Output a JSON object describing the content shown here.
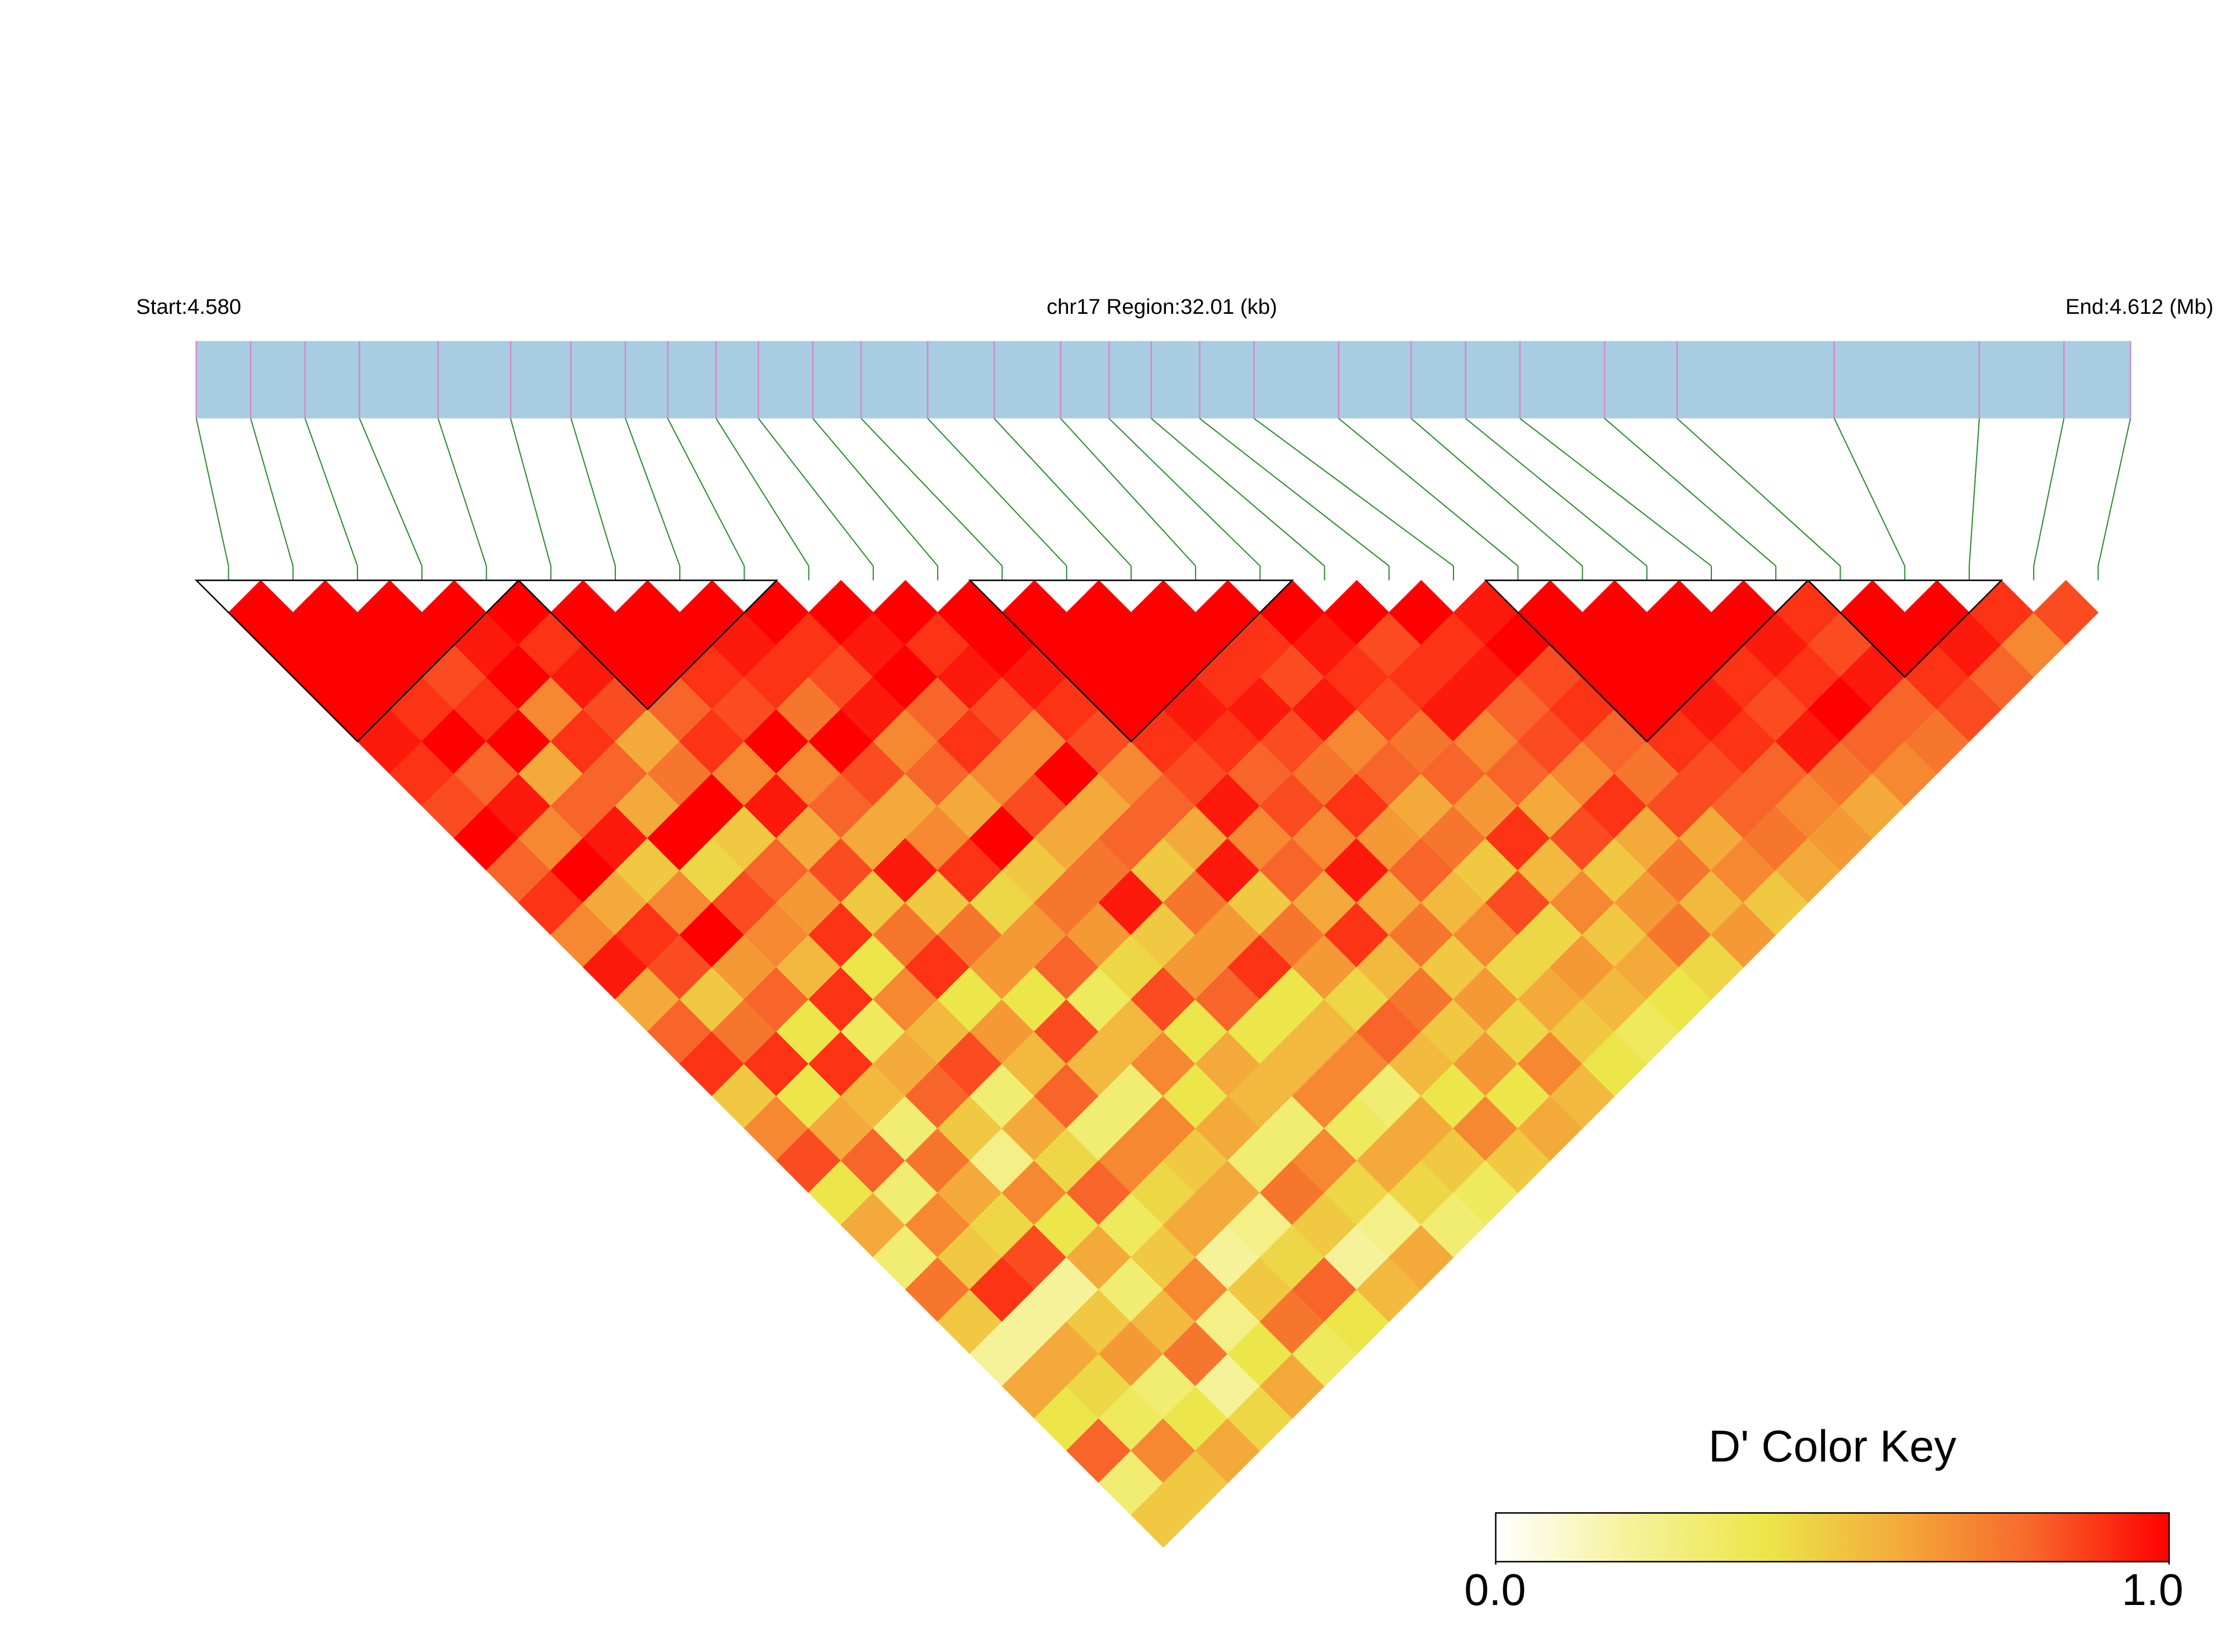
{
  "chart_data": {
    "type": "ld_heatmap",
    "start_label": "Start:4.580",
    "title": "chr17 Region:32.01 (kb)",
    "end_label": "End:4.612 (Mb)",
    "xlim": [
      4.58,
      4.612
    ],
    "positions": [
      4.58,
      4.5809,
      4.5818,
      4.5827,
      4.584,
      4.5852,
      4.5862,
      4.5871,
      4.5878,
      4.5886,
      4.5893,
      4.5902,
      4.591,
      4.5921,
      4.5932,
      4.5943,
      4.5951,
      4.5958,
      4.5966,
      4.5975,
      4.5989,
      4.6001,
      4.601,
      4.6019,
      4.6033,
      4.6045,
      4.6071,
      4.6095,
      4.6109,
      4.612
    ],
    "bar_color": "#a8cde1",
    "snp_line_color": "#d986c8",
    "link_color": "#2a8a2a",
    "blocks": [
      [
        0,
        4
      ],
      [
        5,
        8
      ],
      [
        12,
        16
      ],
      [
        20,
        24
      ],
      [
        25,
        27
      ]
    ],
    "dprime": [
      [
        1,
        1,
        1,
        1,
        0.95,
        0.9,
        0.85,
        1,
        0.8,
        0.9,
        0.7,
        0.95,
        0.6,
        0.8,
        0.9,
        0.5,
        0.7,
        0.85,
        0.4,
        0.6,
        0.3,
        0.75,
        0.5,
        0.2,
        0.6,
        0.4,
        0.8,
        0.3,
        0.5
      ],
      [
        1,
        1,
        1,
        0.9,
        1,
        0.8,
        0.95,
        0.7,
        1,
        0.6,
        0.9,
        0.85,
        0.5,
        0.75,
        0.9,
        0.4,
        0.6,
        0.8,
        0.3,
        0.7,
        0.5,
        0.9,
        0.2,
        0.6,
        0.45,
        0.35,
        0.7,
        0.5
      ],
      [
        1,
        1,
        0.85,
        0.9,
        1,
        0.6,
        0.8,
        0.95,
        0.5,
        0.7,
        1,
        0.65,
        0.8,
        0.4,
        0.9,
        0.55,
        0.3,
        0.75,
        0.6,
        0.45,
        0.85,
        0.2,
        0.5,
        0.65,
        0.3,
        0.4,
        0.6
      ],
      [
        1,
        0.95,
        1,
        0.7,
        0.9,
        0.8,
        0.6,
        1,
        0.45,
        0.85,
        0.7,
        0.55,
        0.9,
        0.35,
        0.6,
        0.8,
        0.5,
        0.25,
        0.7,
        0.4,
        0.6,
        0.3,
        0.55,
        0.75,
        0.2,
        0.45
      ],
      [
        1,
        0.9,
        0.95,
        0.85,
        0.6,
        0.75,
        1,
        0.5,
        0.8,
        0.65,
        0.9,
        0.4,
        0.7,
        0.55,
        0.85,
        0.3,
        0.6,
        0.45,
        0.8,
        0.35,
        0.5,
        0.7,
        0.25,
        0.4,
        0.6
      ],
      [
        1,
        1,
        1,
        0.8,
        0.9,
        0.7,
        0.95,
        0.6,
        0.85,
        0.5,
        0.75,
        0.9,
        0.4,
        0.65,
        0.55,
        0.8,
        0.3,
        0.7,
        0.45,
        0.6,
        0.2,
        0.5,
        0.75,
        0.35
      ],
      [
        1,
        1,
        0.9,
        0.85,
        1,
        0.7,
        0.8,
        0.6,
        0.95,
        0.5,
        0.75,
        0.65,
        0.4,
        0.85,
        0.55,
        0.3,
        0.7,
        0.5,
        0.6,
        0.25,
        0.45,
        0.8,
        0.4
      ],
      [
        1,
        0.95,
        0.9,
        0.75,
        1,
        0.85,
        0.6,
        0.7,
        0.9,
        0.45,
        0.65,
        0.8,
        0.35,
        0.55,
        0.7,
        0.4,
        0.6,
        0.3,
        0.75,
        0.5,
        0.2,
        0.55
      ],
      [
        1,
        0.9,
        0.85,
        0.95,
        0.7,
        0.8,
        0.6,
        1,
        0.5,
        0.75,
        0.65,
        0.45,
        0.85,
        0.4,
        0.6,
        0.55,
        0.3,
        0.7,
        0.45,
        0.25,
        0.6
      ],
      [
        1,
        0.95,
        1,
        0.8,
        0.9,
        0.7,
        0.85,
        0.6,
        0.75,
        0.95,
        0.5,
        0.65,
        0.8,
        0.4,
        0.55,
        0.7,
        0.35,
        0.6,
        0.45,
        0.3
      ],
      [
        1,
        0.9,
        0.95,
        0.85,
        0.7,
        1,
        0.6,
        0.8,
        0.5,
        0.75,
        0.65,
        0.9,
        0.4,
        0.55,
        0.7,
        0.3,
        0.6,
        0.5,
        0.35
      ],
      [
        1,
        1,
        0.95,
        0.9,
        0.85,
        0.7,
        0.8,
        0.6,
        0.95,
        0.5,
        0.75,
        0.65,
        0.45,
        0.8,
        0.55,
        0.4,
        0.7,
        0.5
      ],
      [
        1,
        1,
        1,
        1,
        0.9,
        0.85,
        0.95,
        0.7,
        0.8,
        0.6,
        0.9,
        0.55,
        0.75,
        0.5,
        0.65,
        0.4,
        0.6
      ],
      [
        1,
        1,
        1,
        0.95,
        0.9,
        0.8,
        0.85,
        0.7,
        0.95,
        0.6,
        0.75,
        0.5,
        0.65,
        0.45,
        0.7,
        0.55
      ],
      [
        1,
        1,
        0.9,
        0.95,
        0.85,
        0.75,
        0.9,
        0.65,
        0.8,
        0.55,
        0.7,
        0.45,
        0.6,
        0.5,
        0.4
      ],
      [
        1,
        0.9,
        0.85,
        0.95,
        0.7,
        0.8,
        0.6,
        0.75,
        0.5,
        0.85,
        0.45,
        0.65,
        0.55,
        0.35
      ],
      [
        1,
        0.95,
        0.9,
        0.85,
        0.75,
        0.8,
        0.65,
        0.9,
        0.55,
        0.7,
        0.5,
        0.6,
        0.4
      ],
      [
        1,
        0.85,
        0.9,
        0.95,
        0.7,
        0.8,
        0.6,
        0.85,
        0.5,
        0.65,
        0.75,
        0.45
      ],
      [
        1,
        0.9,
        0.95,
        0.8,
        0.85,
        0.7,
        0.9,
        0.6,
        0.75,
        0.55,
        0.65
      ],
      [
        0.95,
        1,
        0.85,
        0.9,
        0.8,
        0.75,
        0.85,
        0.6,
        0.7,
        0.5
      ],
      [
        1,
        1,
        1,
        1,
        0.9,
        0.85,
        0.8,
        0.75,
        0.6
      ],
      [
        1,
        1,
        1,
        0.95,
        0.9,
        0.8,
        0.7,
        0.65
      ],
      [
        1,
        1,
        0.9,
        0.85,
        0.95,
        0.75,
        0.6
      ],
      [
        1,
        0.95,
        0.9,
        1,
        0.8,
        0.7
      ],
      [
        0.9,
        0.85,
        0.95,
        0.8,
        0.75
      ],
      [
        1,
        1,
        0.9,
        0.85
      ],
      [
        1,
        0.95,
        0.8
      ],
      [
        0.9,
        0.7
      ],
      [
        0.85
      ]
    ],
    "colorkey": {
      "title": "D' Color Key",
      "colors": [
        "#ffffff",
        "#f6f29a",
        "#ece64a",
        "#f4aa3a",
        "#f8652a",
        "#ff0000"
      ],
      "lim": [
        0,
        1
      ],
      "ticks": [
        {
          "value": 0,
          "label": "0.0"
        },
        {
          "value": 1,
          "label": "1.0"
        }
      ]
    }
  }
}
